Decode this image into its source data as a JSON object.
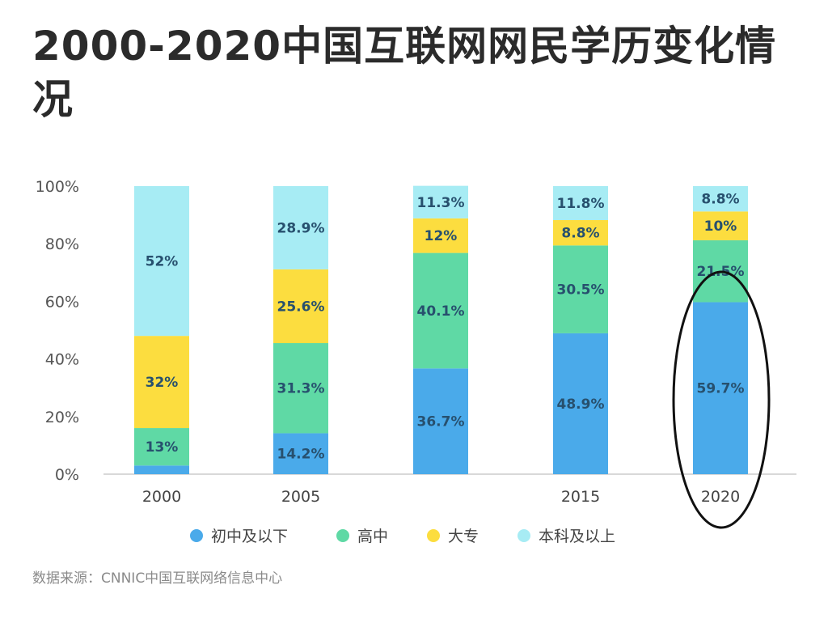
{
  "title": "2000-2020中国互联网网民学历变化情况",
  "source": "数据来源：CNNIC中国互联网络信息中心",
  "colors": {
    "初中及以下": "#4aaaea",
    "高中": "#5fd9a5",
    "大专": "#fcdd3f",
    "本科及以上": "#a7ecf4",
    "circle": "#111111"
  },
  "chart_data": {
    "type": "bar",
    "stacked": true,
    "categories": [
      "2000",
      "2005",
      "",
      "2015",
      "2020"
    ],
    "yticks": [
      "0%",
      "20%",
      "40%",
      "60%",
      "80%",
      "100%"
    ],
    "ylim": [
      0,
      100
    ],
    "series": [
      {
        "name": "初中及以下",
        "values": [
          3,
          14.2,
          36.7,
          48.9,
          59.7
        ],
        "labels": [
          "",
          "14.2%",
          "36.7%",
          "48.9%",
          "59.7%"
        ]
      },
      {
        "name": "高中",
        "values": [
          13,
          31.3,
          40.1,
          30.5,
          21.5
        ],
        "labels": [
          "13%",
          "31.3%",
          "40.1%",
          "30.5%",
          "21.5%"
        ]
      },
      {
        "name": "大专",
        "values": [
          32,
          25.6,
          12,
          8.8,
          10
        ],
        "labels": [
          "32%",
          "25.6%",
          "12%",
          "8.8%",
          "10%"
        ]
      },
      {
        "name": "本科及以上",
        "values": [
          52,
          28.9,
          11.3,
          11.8,
          8.8
        ],
        "labels": [
          "52%",
          "28.9%",
          "11.3%",
          "11.8%",
          "8.8%"
        ]
      }
    ],
    "legend_position": "bottom",
    "annotation": "circle around 2020 bar"
  }
}
